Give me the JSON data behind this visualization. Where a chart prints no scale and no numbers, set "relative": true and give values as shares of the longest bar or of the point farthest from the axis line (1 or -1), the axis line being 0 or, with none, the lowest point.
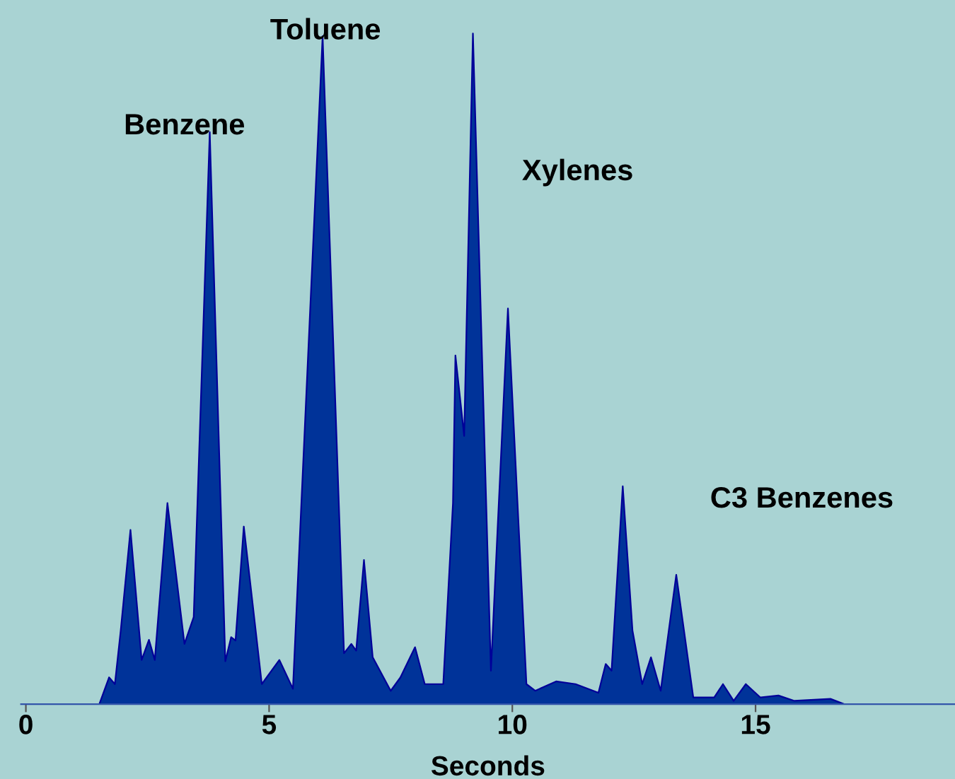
{
  "chart_data": {
    "type": "area",
    "relative": true,
    "xlabel": "Seconds",
    "xlim": [
      -0.1,
      19.1
    ],
    "xticks": [
      0,
      5,
      10,
      15
    ],
    "grid": false,
    "legend": false,
    "annotations": [
      "Benzene",
      "Toluene",
      "Xylenes",
      "C3 Benzenes"
    ],
    "series": [
      {
        "color": "#003399",
        "x": [
          0,
          1.51,
          1.71,
          1.83,
          1.95,
          2.15,
          2.38,
          2.53,
          2.65,
          2.91,
          3.26,
          3.45,
          3.78,
          4.1,
          4.22,
          4.31,
          4.48,
          4.85,
          5.21,
          5.49,
          6.1,
          6.54,
          6.69,
          6.79,
          6.95,
          7.13,
          7.5,
          7.7,
          8.0,
          8.2,
          8.58,
          8.78,
          8.83,
          9.01,
          9.19,
          9.56,
          9.91,
          10.29,
          10.47,
          10.9,
          11.3,
          11.77,
          11.92,
          12.04,
          12.27,
          12.47,
          12.67,
          12.85,
          13.05,
          13.37,
          13.72,
          14.15,
          14.33,
          14.55,
          14.8,
          15.1,
          15.47,
          15.8,
          16.54,
          16.83,
          19.1
        ],
        "values": [
          0,
          0,
          0.04,
          0.03,
          0.11,
          0.26,
          0.066,
          0.096,
          0.066,
          0.3,
          0.09,
          0.13,
          0.853,
          0.064,
          0.1,
          0.095,
          0.265,
          0.03,
          0.066,
          0.023,
          0.996,
          0.076,
          0.09,
          0.08,
          0.215,
          0.07,
          0.02,
          0.04,
          0.085,
          0.03,
          0.03,
          0.3,
          0.52,
          0.4,
          1.0,
          0.05,
          0.59,
          0.03,
          0.02,
          0.034,
          0.03,
          0.017,
          0.06,
          0.05,
          0.325,
          0.11,
          0.03,
          0.07,
          0.02,
          0.193,
          0.01,
          0.01,
          0.03,
          0.005,
          0.03,
          0.01,
          0.013,
          0.005,
          0.008,
          0,
          0
        ]
      }
    ]
  }
}
